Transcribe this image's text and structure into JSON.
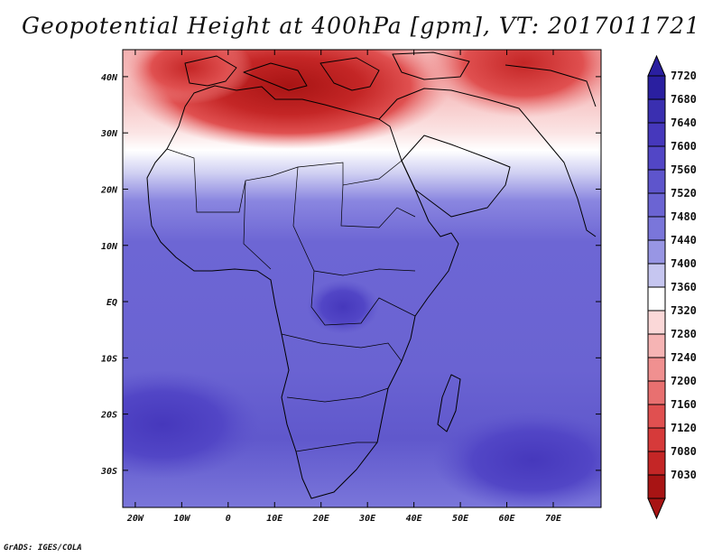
{
  "title": "Geopotential Height at 400hPa [gpm], VT: 2017011721",
  "lat_ticks": [
    {
      "value": 40,
      "label": "40N"
    },
    {
      "value": 30,
      "label": "30N"
    },
    {
      "value": 20,
      "label": "20N"
    },
    {
      "value": 10,
      "label": "10N"
    },
    {
      "value": 0,
      "label": "EQ"
    },
    {
      "value": -10,
      "label": "10S"
    },
    {
      "value": -20,
      "label": "20S"
    },
    {
      "value": -30,
      "label": "30S"
    }
  ],
  "lon_ticks": [
    {
      "value": -20,
      "label": "20W"
    },
    {
      "value": -10,
      "label": "10W"
    },
    {
      "value": 0,
      "label": "0"
    },
    {
      "value": 10,
      "label": "10E"
    },
    {
      "value": 20,
      "label": "20E"
    },
    {
      "value": 30,
      "label": "30E"
    },
    {
      "value": 40,
      "label": "40E"
    },
    {
      "value": 50,
      "label": "50E"
    },
    {
      "value": 60,
      "label": "60E"
    },
    {
      "value": 70,
      "label": "70E"
    }
  ],
  "colorbar": {
    "levels": [
      "7720",
      "7680",
      "7640",
      "7600",
      "7560",
      "7520",
      "7480",
      "7440",
      "7400",
      "7360",
      "7320",
      "7280",
      "7240",
      "7200",
      "7160",
      "7120",
      "7080",
      "7030"
    ],
    "colors": [
      "#2a1fa0",
      "#3a2fb0",
      "#4638bc",
      "#5246c6",
      "#5e55cc",
      "#6b64d3",
      "#7a76da",
      "#9896e4",
      "#c6c6f0",
      "#ffffff",
      "#fbd8d8",
      "#f6b4b4",
      "#f09090",
      "#e87070",
      "#e05050",
      "#d63a3a",
      "#c42626",
      "#a81414"
    ]
  },
  "footer": "GrADS: IGES/COLA"
}
